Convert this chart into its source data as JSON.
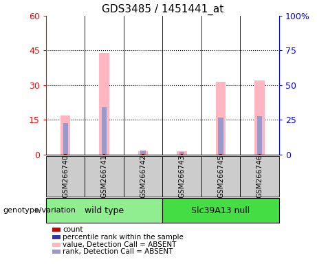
{
  "title": "GDS3485 / 1451441_at",
  "samples": [
    "GSM266740",
    "GSM266741",
    "GSM266742",
    "GSM266743",
    "GSM266745",
    "GSM266746"
  ],
  "groups": [
    {
      "label": "wild type",
      "color": "#90EE90",
      "n": 3
    },
    {
      "label": "Slc39A13 null",
      "color": "#44DD44",
      "n": 3
    }
  ],
  "pink_bars": [
    17.0,
    44.0,
    1.5,
    1.5,
    31.5,
    32.0
  ],
  "blue_bars": [
    13.5,
    20.5,
    1.8,
    1.1,
    16.0,
    16.5
  ],
  "red_bars": [
    0.3,
    0.3,
    0.3,
    0.3,
    0.3,
    0.3
  ],
  "ylim_left": [
    0,
    60
  ],
  "ylim_right": [
    0,
    100
  ],
  "yticks_left": [
    0,
    15,
    30,
    45,
    60
  ],
  "ytick_labels_left": [
    "0",
    "15",
    "30",
    "45",
    "60"
  ],
  "yticks_right": [
    0,
    25,
    50,
    75,
    100
  ],
  "ytick_labels_right": [
    "0",
    "25",
    "50",
    "75",
    "100%"
  ],
  "pink_color": "#FFB6C1",
  "blue_color": "#9999CC",
  "red_color": "#CC0000",
  "dark_blue_color": "#3333AA",
  "group_box_color": "#CCCCCC",
  "genotype_label": "genotype/variation",
  "legend_items": [
    {
      "label": "count",
      "color": "#CC0000"
    },
    {
      "label": "percentile rank within the sample",
      "color": "#3333AA"
    },
    {
      "label": "value, Detection Call = ABSENT",
      "color": "#FFB6C1"
    },
    {
      "label": "rank, Detection Call = ABSENT",
      "color": "#9999CC"
    }
  ],
  "bar_width": 0.18
}
